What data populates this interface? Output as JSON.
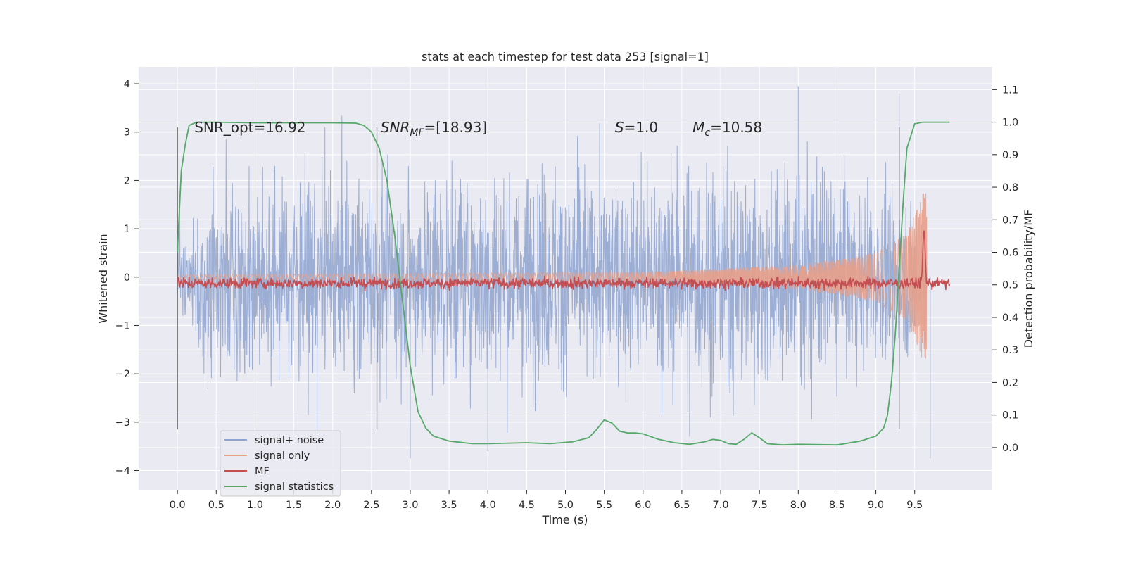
{
  "chart_data": {
    "type": "line",
    "title": "stats at each timestep for test data 253 [signal=1]",
    "xlabel": "Time (s)",
    "ylabel": "Whitened strain",
    "ylabel_right": "Detection probability/MF",
    "xlim": [
      -0.5,
      10.5
    ],
    "ylim": [
      -4.4,
      4.35
    ],
    "ylim_right": [
      -0.13,
      1.17
    ],
    "x_ticks": [
      0.0,
      0.5,
      1.0,
      1.5,
      2.0,
      2.5,
      3.0,
      3.5,
      4.0,
      4.5,
      5.0,
      5.5,
      6.0,
      6.5,
      7.0,
      7.5,
      8.0,
      8.5,
      9.0,
      9.5
    ],
    "x_tick_labels": [
      "0.0",
      "0.5",
      "1.0",
      "1.5",
      "2.0",
      "2.5",
      "3.0",
      "3.5",
      "4.0",
      "4.5",
      "5.0",
      "5.5",
      "6.0",
      "6.5",
      "7.0",
      "7.5",
      "8.0",
      "8.5",
      "9.0",
      "9.5"
    ],
    "y_ticks": [
      -4,
      -3,
      -2,
      -1,
      0,
      1,
      2,
      3,
      4
    ],
    "y_tick_labels": [
      "−4",
      "−3",
      "−2",
      "−1",
      "0",
      "1",
      "2",
      "3",
      "4"
    ],
    "y_right_ticks": [
      0.0,
      0.1,
      0.2,
      0.3,
      0.4,
      0.5,
      0.6,
      0.7,
      0.8,
      0.9,
      1.0,
      1.1
    ],
    "y_right_tick_labels": [
      "0.0",
      "0.1",
      "0.2",
      "0.3",
      "0.4",
      "0.5",
      "0.6",
      "0.7",
      "0.8",
      "0.9",
      "1.0",
      "1.1"
    ],
    "grid": true,
    "legend_placement": "lower-left",
    "series": [
      {
        "name": "signal+ noise",
        "color": "#8ea3cf",
        "axis": "left",
        "x_range": [
          0.0,
          9.65
        ],
        "envelope": [
          [
            0.0,
            1.0
          ],
          [
            0.5,
            2.6
          ],
          [
            2.0,
            2.5
          ],
          [
            5.0,
            2.7
          ],
          [
            8.0,
            2.8
          ],
          [
            9.65,
            1.8
          ]
        ],
        "peaks": [
          [
            1.9,
            3.1
          ],
          [
            8.0,
            3.95
          ],
          [
            9.3,
            3.8
          ],
          [
            9.7,
            -3.75
          ],
          [
            3.0,
            -3.75
          ],
          [
            4.0,
            -3.6
          ],
          [
            6.6,
            -3.3
          ],
          [
            1.8,
            -3.6
          ]
        ]
      },
      {
        "name": "signal only",
        "color": "#e8a08a",
        "axis": "left",
        "amplitude": [
          [
            0.0,
            0.05
          ],
          [
            6.0,
            0.1
          ],
          [
            8.0,
            0.25
          ],
          [
            9.0,
            0.5
          ],
          [
            9.4,
            0.9
          ],
          [
            9.6,
            1.7
          ],
          [
            9.65,
            2.0
          ],
          [
            9.66,
            0
          ]
        ]
      },
      {
        "name": "MF",
        "color": "#c44e52",
        "axis": "right",
        "baseline": 0.505,
        "noise": 0.012,
        "peak": [
          9.62,
          0.67
        ]
      },
      {
        "name": "signal statistics",
        "color": "#55a868",
        "axis": "right",
        "x": [
          0.0,
          0.05,
          0.1,
          0.15,
          0.25,
          0.5,
          1.0,
          1.5,
          2.0,
          2.3,
          2.4,
          2.5,
          2.6,
          2.7,
          2.8,
          2.9,
          3.0,
          3.1,
          3.2,
          3.3,
          3.5,
          3.8,
          4.0,
          4.5,
          4.8,
          5.1,
          5.3,
          5.4,
          5.5,
          5.6,
          5.7,
          5.8,
          5.9,
          6.0,
          6.2,
          6.4,
          6.6,
          6.8,
          6.9,
          7.0,
          7.1,
          7.2,
          7.3,
          7.4,
          7.5,
          7.6,
          7.8,
          8.0,
          8.5,
          8.8,
          9.0,
          9.1,
          9.15,
          9.2,
          9.25,
          9.3,
          9.35,
          9.4,
          9.5,
          9.6,
          9.8,
          9.95
        ],
        "y": [
          0.6,
          0.85,
          0.93,
          0.99,
          1.0,
          1.0,
          0.998,
          0.998,
          0.998,
          0.997,
          0.99,
          0.97,
          0.92,
          0.82,
          0.65,
          0.45,
          0.25,
          0.11,
          0.06,
          0.035,
          0.02,
          0.012,
          0.012,
          0.015,
          0.012,
          0.018,
          0.03,
          0.055,
          0.085,
          0.075,
          0.05,
          0.045,
          0.045,
          0.042,
          0.025,
          0.015,
          0.01,
          0.018,
          0.025,
          0.022,
          0.012,
          0.01,
          0.025,
          0.045,
          0.03,
          0.012,
          0.008,
          0.01,
          0.008,
          0.02,
          0.035,
          0.06,
          0.1,
          0.2,
          0.35,
          0.55,
          0.75,
          0.92,
          0.995,
          1.0,
          1.0,
          1.0
        ]
      }
    ],
    "vertical_lines": [
      0.0,
      2.57,
      9.3
    ],
    "annotations": [
      {
        "text": "SNR_opt=16.92",
        "x": 0.2,
        "y": 3.1
      },
      {
        "text_main": "SNR",
        "text_sub": "MF",
        "text_rest": "=[18.93]",
        "x": 2.6,
        "y": 3.1
      },
      {
        "text_main": "S",
        "text_rest": "=1.0",
        "x": 5.62,
        "y": 3.1
      },
      {
        "text_main": "M",
        "text_sub": "c",
        "text_rest": "=10.58",
        "x": 6.62,
        "y": 3.1
      }
    ]
  }
}
